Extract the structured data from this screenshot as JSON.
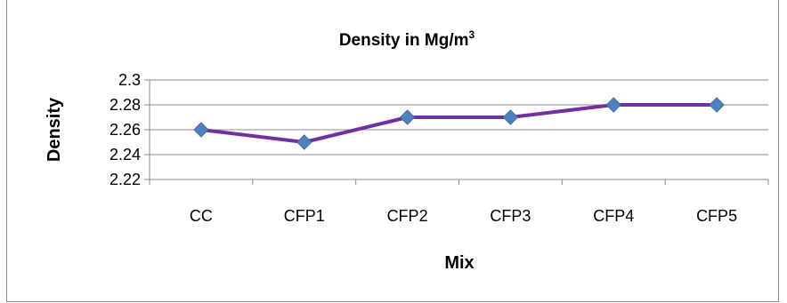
{
  "chart_data": {
    "type": "line",
    "title": "Density in Mg/m",
    "title_superscript": "3",
    "xlabel": "Mix",
    "ylabel": "Density",
    "categories": [
      "CC",
      "CFP1",
      "CFP2",
      "CFP3",
      "CFP4",
      "CFP5"
    ],
    "series": [
      {
        "values": [
          2.26,
          2.25,
          2.27,
          2.27,
          2.28,
          2.28
        ],
        "color": "#7030a0",
        "marker_color": "#4f81bd"
      }
    ],
    "ylim": [
      2.22,
      2.3
    ],
    "yticks": [
      "2.22",
      "2.24",
      "2.26",
      "2.28",
      "2.3"
    ],
    "grid": true,
    "legend": "none"
  }
}
